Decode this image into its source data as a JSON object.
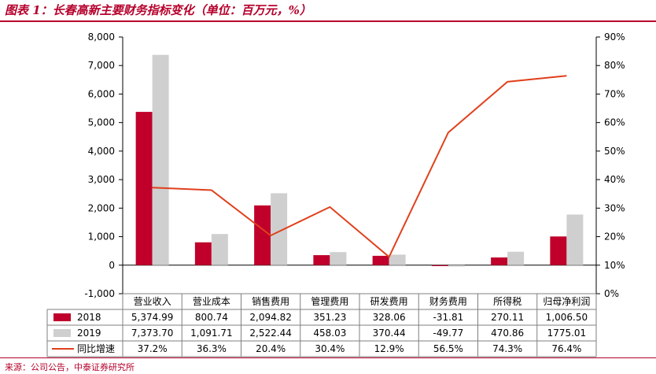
{
  "title": "图表 1：长春高新主要财务指标变化（单位：百万元，%）",
  "source": "来源：公司公告，中泰证券研究所",
  "chart_data": {
    "type": "bar",
    "categories": [
      "营业收入",
      "营业成本",
      "销售费用",
      "管理费用",
      "研发费用",
      "财务费用",
      "所得税",
      "归母净利润"
    ],
    "series": [
      {
        "name": "2018",
        "kind": "bar",
        "axis": "left",
        "color": "#c0002b",
        "values": [
          5374.99,
          800.74,
          2094.82,
          351.23,
          328.06,
          -31.81,
          270.11,
          1006.5
        ],
        "labels": [
          "5,374.99",
          "800.74",
          "2,094.82",
          "351.23",
          "328.06",
          "-31.81",
          "270.11",
          "1,006.50"
        ]
      },
      {
        "name": "2019",
        "kind": "bar",
        "axis": "left",
        "color": "#cfcfcf",
        "values": [
          7373.7,
          1091.71,
          2522.44,
          458.03,
          370.44,
          -49.77,
          470.86,
          1775.01
        ],
        "labels": [
          "7,373.70",
          "1,091.71",
          "2,522.44",
          "458.03",
          "370.44",
          "-49.77",
          "470.86",
          "1775.01"
        ]
      },
      {
        "name": "同比增速",
        "kind": "line",
        "axis": "right",
        "color": "#e0401c",
        "values": [
          37.2,
          36.3,
          20.4,
          30.4,
          12.9,
          56.5,
          74.3,
          76.4
        ],
        "labels": [
          "37.2%",
          "36.3%",
          "20.4%",
          "30.4%",
          "12.9%",
          "56.5%",
          "74.3%",
          "76.4%"
        ]
      }
    ],
    "yleft": {
      "min": -1000,
      "max": 8000,
      "step": 1000,
      "ticks": [
        "-1,000",
        "0",
        "1,000",
        "2,000",
        "3,000",
        "4,000",
        "5,000",
        "6,000",
        "7,000",
        "8,000"
      ]
    },
    "yright": {
      "min": 0,
      "max": 90,
      "step": 10,
      "ticks": [
        "0%",
        "10%",
        "20%",
        "30%",
        "40%",
        "50%",
        "60%",
        "70%",
        "80%",
        "90%"
      ]
    },
    "grid": false,
    "legend": "data table below chart"
  }
}
